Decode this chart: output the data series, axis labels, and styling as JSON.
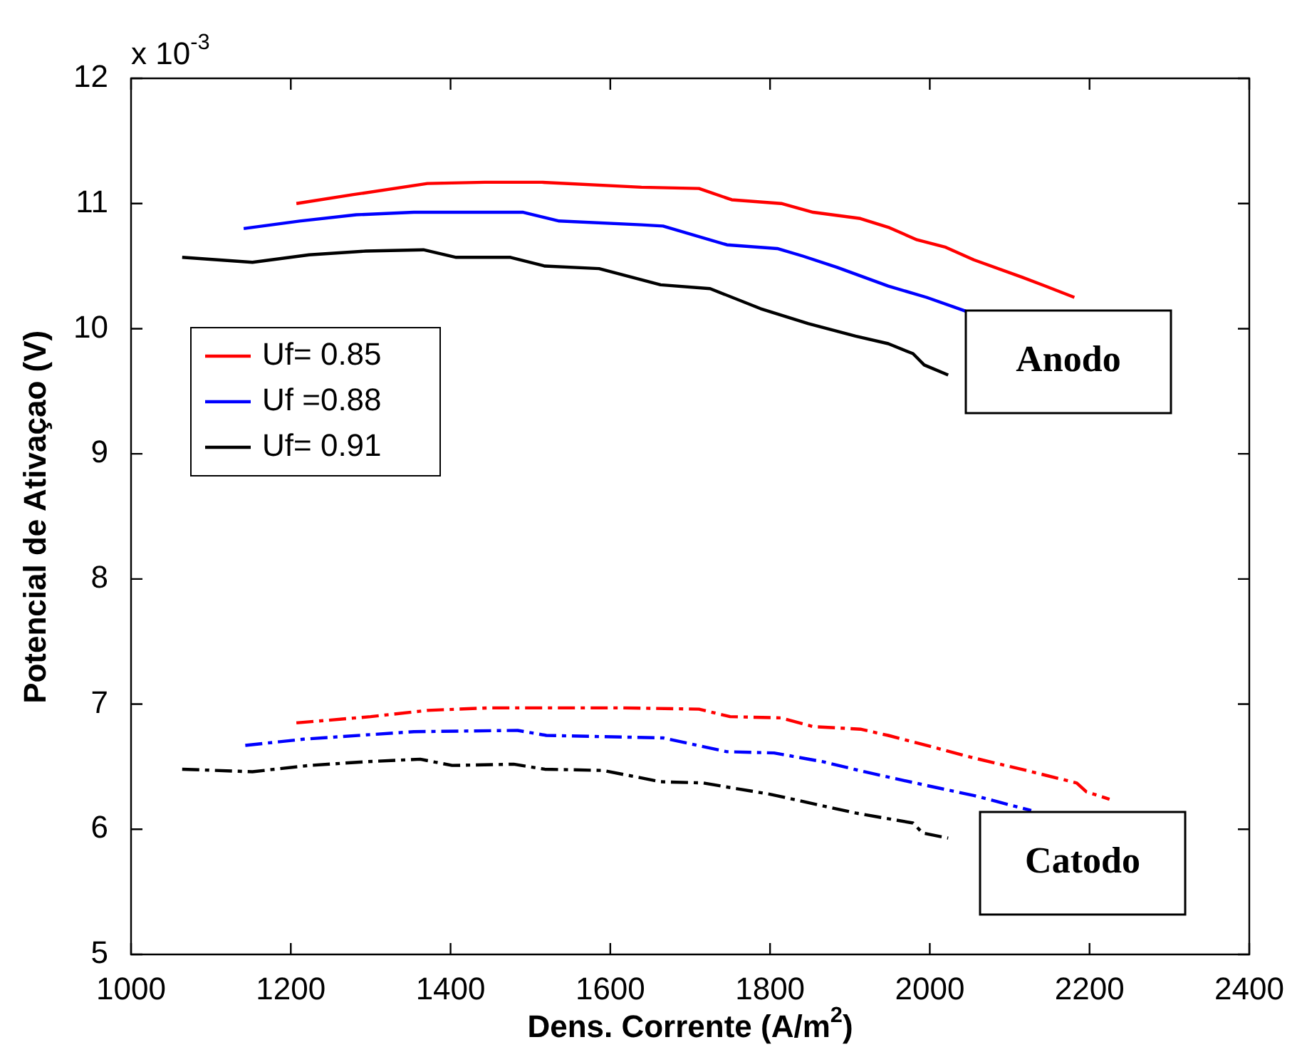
{
  "chart_data": {
    "type": "line",
    "xlabel": "Dens. Corrente (A/m$^{2}$)",
    "ylabel": "Potencial de Ativaçao (V)",
    "xlim": [
      1000,
      2400
    ],
    "xticks": [
      1000,
      1200,
      1400,
      1600,
      1800,
      2000,
      2200,
      2400
    ],
    "ylim": [
      5,
      12
    ],
    "yticks": [
      5,
      6,
      7,
      8,
      9,
      10,
      11,
      12
    ],
    "grid": false,
    "legend": "left",
    "marker": "none",
    "annotations": [
      "x 10$^{-3}$",
      "Anodo",
      "Catodo"
    ],
    "series": [
      {
        "name": "Uf= 0.85",
        "color": "#ff0000",
        "line_style": "solid",
        "x": [
          1207,
          1277,
          1371,
          1443,
          1514,
          1639,
          1711,
          1752,
          1814,
          1854,
          1913,
          1948,
          1984,
          2020,
          2055,
          2116,
          2145,
          2181
        ],
        "values": [
          11.0,
          11.07,
          11.16,
          11.17,
          11.17,
          11.13,
          11.12,
          11.03,
          11.0,
          10.93,
          10.88,
          10.81,
          10.71,
          10.65,
          10.55,
          10.41,
          10.34,
          10.25
        ]
      },
      {
        "name": "Uf =0.88",
        "color": "#0000ff",
        "line_style": "solid",
        "x": [
          1141,
          1211,
          1282,
          1354,
          1491,
          1536,
          1639,
          1666,
          1746,
          1809,
          1841,
          1884,
          1948,
          1996,
          2045
        ],
        "values": [
          10.8,
          10.86,
          10.91,
          10.93,
          10.93,
          10.86,
          10.83,
          10.82,
          10.67,
          10.64,
          10.58,
          10.49,
          10.34,
          10.25,
          10.14
        ]
      },
      {
        "name": "Uf= 0.91",
        "color": "#000000",
        "line_style": "solid",
        "x": [
          1064,
          1152,
          1223,
          1294,
          1366,
          1407,
          1475,
          1518,
          1586,
          1663,
          1725,
          1788,
          1848,
          1907,
          1948,
          1979,
          1993,
          2023
        ],
        "values": [
          10.57,
          10.53,
          10.59,
          10.62,
          10.63,
          10.57,
          10.57,
          10.5,
          10.48,
          10.35,
          10.32,
          10.16,
          10.04,
          9.94,
          9.88,
          9.8,
          9.71,
          9.63
        ]
      },
      {
        "color": "#ff0000",
        "line_style": "dashed",
        "x": [
          1207,
          1300,
          1371,
          1448,
          1616,
          1711,
          1750,
          1814,
          1854,
          1913,
          1948,
          2002,
          2055,
          2121,
          2184,
          2196,
          2225
        ],
        "values": [
          6.85,
          6.9,
          6.95,
          6.97,
          6.97,
          6.96,
          6.9,
          6.89,
          6.82,
          6.8,
          6.75,
          6.66,
          6.57,
          6.47,
          6.37,
          6.3,
          6.24
        ]
      },
      {
        "color": "#0000ff",
        "line_style": "dashed",
        "x": [
          1143,
          1216,
          1354,
          1484,
          1520,
          1666,
          1746,
          1805,
          1866,
          1918,
          1996,
          2055,
          2127
        ],
        "values": [
          6.67,
          6.72,
          6.78,
          6.79,
          6.75,
          6.73,
          6.62,
          6.61,
          6.54,
          6.46,
          6.35,
          6.27,
          6.15
        ]
      },
      {
        "color": "#000000",
        "line_style": "dashed",
        "x": [
          1064,
          1152,
          1223,
          1294,
          1362,
          1402,
          1479,
          1518,
          1591,
          1663,
          1716,
          1800,
          1907,
          1979,
          1991,
          2023
        ],
        "values": [
          6.48,
          6.46,
          6.51,
          6.54,
          6.56,
          6.51,
          6.52,
          6.48,
          6.47,
          6.38,
          6.37,
          6.28,
          6.13,
          6.05,
          5.97,
          5.93
        ]
      }
    ]
  }
}
